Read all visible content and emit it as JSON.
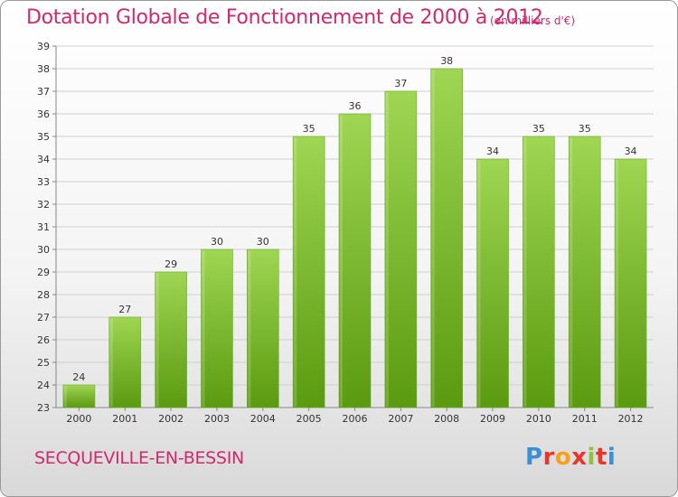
{
  "header": {
    "title": "Dotation Globale de Fonctionnement de 2000 à 2012",
    "unit_note": "(en milliers d'€)"
  },
  "footer": {
    "commune": "SECQUEVILLE-EN-BESSIN",
    "logo_text": "Proxiti",
    "logo_colors": [
      "#3a8fd6",
      "#e8362b",
      "#f7a01c",
      "#e8362b",
      "#8cc43c",
      "#e8362b",
      "#3a8fd6"
    ]
  },
  "colors": {
    "title": "#d2286e",
    "bar_top": "#9fd653",
    "bar_bottom": "#5a9a10",
    "grid": "#cfcfcf"
  },
  "chart_data": {
    "type": "bar",
    "title": "Dotation Globale de Fonctionnement de 2000 à 2012",
    "subtitle": "(en milliers d'€)",
    "categories": [
      "2000",
      "2001",
      "2002",
      "2003",
      "2004",
      "2005",
      "2006",
      "2007",
      "2008",
      "2009",
      "2010",
      "2011",
      "2012"
    ],
    "values": [
      24,
      27,
      29,
      30,
      30,
      35,
      36,
      37,
      38,
      34,
      35,
      35,
      34
    ],
    "ylim": [
      23,
      39
    ],
    "yticks": [
      23,
      24,
      25,
      26,
      27,
      28,
      29,
      30,
      31,
      32,
      33,
      34,
      35,
      36,
      37,
      38,
      39
    ],
    "grid": true,
    "data_labels": true
  }
}
